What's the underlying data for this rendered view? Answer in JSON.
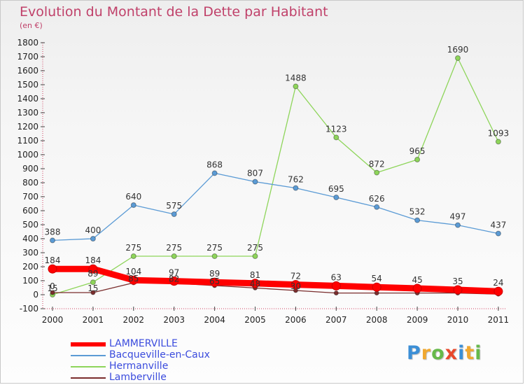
{
  "title": "Evolution du Montant de la Dette par Habitant",
  "subtitle": "(en €)",
  "logo": "Proxiti",
  "colors": {
    "title": "#c0416a",
    "axis_text": "#222222",
    "legend_text": "#3a4bdd",
    "lammerville": "#ff0000",
    "bacqueville": "#5b9bd5",
    "hermanville": "#8ed55a",
    "lamberville": "#7a2d2d"
  },
  "chart_data": {
    "type": "line",
    "title": "Evolution du Montant de la Dette par Habitant",
    "ylabel": "(en €)",
    "ylim": [
      -100,
      1800
    ],
    "yticks": [
      -100,
      0,
      100,
      200,
      300,
      400,
      500,
      600,
      700,
      800,
      900,
      1000,
      1100,
      1200,
      1300,
      1400,
      1500,
      1600,
      1700,
      1800
    ],
    "categories": [
      "2000",
      "2001",
      "2002",
      "2003",
      "2004",
      "2005",
      "2006",
      "2007",
      "2008",
      "2009",
      "2010",
      "2011"
    ],
    "grid": false,
    "legend": "bottom-left",
    "series": [
      {
        "name": "LAMMERVILLE",
        "color": "#ff0000",
        "values": [
          184,
          184,
          104,
          97,
          89,
          81,
          72,
          63,
          54,
          45,
          35,
          24
        ],
        "labels": [
          "184",
          "184",
          "104",
          "97",
          "89",
          "81",
          "72",
          "63",
          "54",
          "45",
          "35",
          "24"
        ]
      },
      {
        "name": "Bacqueville-en-Caux",
        "color": "#5b9bd5",
        "values": [
          388,
          400,
          640,
          575,
          868,
          807,
          762,
          695,
          626,
          532,
          497,
          437
        ],
        "labels": [
          "388",
          "400",
          "640",
          "575",
          "868",
          "807",
          "762",
          "695",
          "626",
          "532",
          "497",
          "437"
        ]
      },
      {
        "name": "Hermanville",
        "color": "#8ed55a",
        "values": [
          0,
          89,
          275,
          275,
          275,
          275,
          1488,
          1123,
          872,
          965,
          1690,
          1093
        ],
        "labels": [
          "0",
          "89",
          "275",
          "275",
          "275",
          "275",
          "1488",
          "1123",
          "872",
          "965",
          "1690",
          "1093"
        ]
      },
      {
        "name": "Lamberville",
        "color": "#7a2d2d",
        "values": [
          15,
          15,
          85,
          82,
          65,
          48,
          30,
          12,
          12,
          12,
          12,
          4
        ],
        "labels": [
          "15",
          "15",
          "85",
          "82",
          "65",
          "48",
          "30",
          "",
          "",
          "",
          "",
          ""
        ]
      }
    ]
  }
}
